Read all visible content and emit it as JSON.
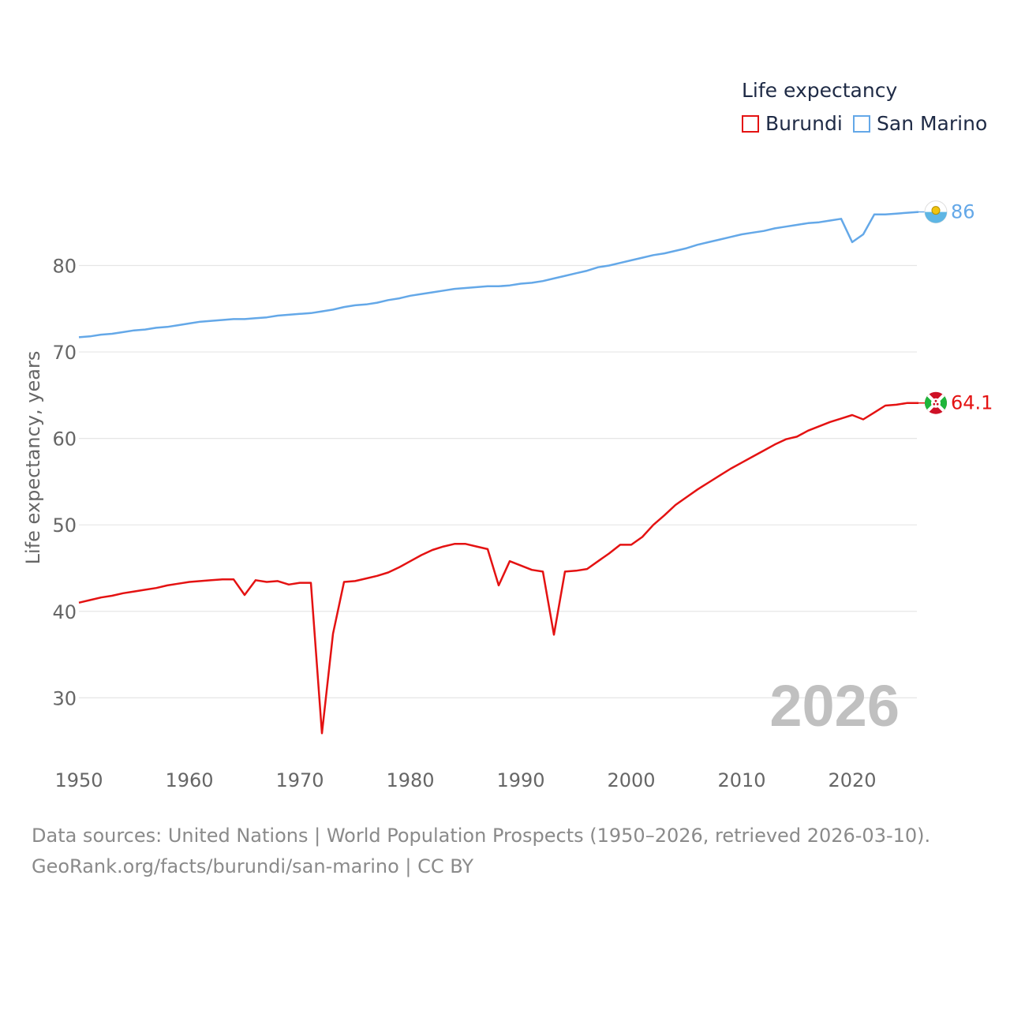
{
  "legend": {
    "title": "Life expectancy",
    "items": [
      {
        "label": "Burundi",
        "color": "#e41212"
      },
      {
        "label": "San Marino",
        "color": "#64a8e8"
      }
    ]
  },
  "chart_data": {
    "type": "line",
    "title": "Life expectancy",
    "xlabel": "",
    "ylabel": "Life expectancy, years",
    "xlim": [
      1950,
      2026
    ],
    "ylim": [
      22,
      92
    ],
    "x_ticks": [
      1950,
      1960,
      1970,
      1980,
      1990,
      2000,
      2010,
      2020
    ],
    "y_ticks": [
      30,
      40,
      50,
      60,
      70,
      80
    ],
    "grid": true,
    "current_year_label": "2026",
    "x": [
      1950,
      1951,
      1952,
      1953,
      1954,
      1955,
      1956,
      1957,
      1958,
      1959,
      1960,
      1961,
      1962,
      1963,
      1964,
      1965,
      1966,
      1967,
      1968,
      1969,
      1970,
      1971,
      1972,
      1973,
      1974,
      1975,
      1976,
      1977,
      1978,
      1979,
      1980,
      1981,
      1982,
      1983,
      1984,
      1985,
      1986,
      1987,
      1988,
      1989,
      1990,
      1991,
      1992,
      1993,
      1994,
      1995,
      1996,
      1997,
      1998,
      1999,
      2000,
      2001,
      2002,
      2003,
      2004,
      2005,
      2006,
      2007,
      2008,
      2009,
      2010,
      2011,
      2012,
      2013,
      2014,
      2015,
      2016,
      2017,
      2018,
      2019,
      2020,
      2021,
      2022,
      2023,
      2024,
      2025,
      2026
    ],
    "series": [
      {
        "name": "Burundi",
        "color": "#e41212",
        "end_label": "64.1",
        "values": [
          41.0,
          41.3,
          41.6,
          41.8,
          42.1,
          42.3,
          42.5,
          42.7,
          43.0,
          43.2,
          43.4,
          43.5,
          43.6,
          43.7,
          43.7,
          41.9,
          43.6,
          43.4,
          43.5,
          43.1,
          43.3,
          43.3,
          25.9,
          37.4,
          43.4,
          43.5,
          43.8,
          44.1,
          44.5,
          45.1,
          45.8,
          46.5,
          47.1,
          47.5,
          47.8,
          47.8,
          47.5,
          47.2,
          43.0,
          45.8,
          45.3,
          44.8,
          44.6,
          37.3,
          44.6,
          44.7,
          44.9,
          45.8,
          46.7,
          47.7,
          47.7,
          48.6,
          50.0,
          51.1,
          52.3,
          53.2,
          54.1,
          54.9,
          55.7,
          56.5,
          57.2,
          57.9,
          58.6,
          59.3,
          59.9,
          60.2,
          60.9,
          61.4,
          61.9,
          62.3,
          62.7,
          62.2,
          63.0,
          63.8,
          63.9,
          64.1,
          64.1
        ]
      },
      {
        "name": "San Marino",
        "color": "#64a8e8",
        "end_label": "86",
        "values": [
          71.7,
          71.8,
          72.0,
          72.1,
          72.3,
          72.5,
          72.6,
          72.8,
          72.9,
          73.1,
          73.3,
          73.5,
          73.6,
          73.7,
          73.8,
          73.8,
          73.9,
          74.0,
          74.2,
          74.3,
          74.4,
          74.5,
          74.7,
          74.9,
          75.2,
          75.4,
          75.5,
          75.7,
          76.0,
          76.2,
          76.5,
          76.7,
          76.9,
          77.1,
          77.3,
          77.4,
          77.5,
          77.6,
          77.6,
          77.7,
          77.9,
          78.0,
          78.2,
          78.5,
          78.8,
          79.1,
          79.4,
          79.8,
          80.0,
          80.3,
          80.6,
          80.9,
          81.2,
          81.4,
          81.7,
          82.0,
          82.4,
          82.7,
          83.0,
          83.3,
          83.6,
          83.8,
          84.0,
          84.3,
          84.5,
          84.7,
          84.9,
          85.0,
          85.2,
          85.4,
          82.7,
          83.6,
          85.9,
          85.9,
          86.0,
          86.1,
          86.2
        ]
      }
    ]
  },
  "source": {
    "line1": "Data sources: United Nations | World Population Prospects (1950–2026, retrieved 2026-03-10).",
    "line2": "GeoRank.org/facts/burundi/san-marino | CC BY"
  }
}
